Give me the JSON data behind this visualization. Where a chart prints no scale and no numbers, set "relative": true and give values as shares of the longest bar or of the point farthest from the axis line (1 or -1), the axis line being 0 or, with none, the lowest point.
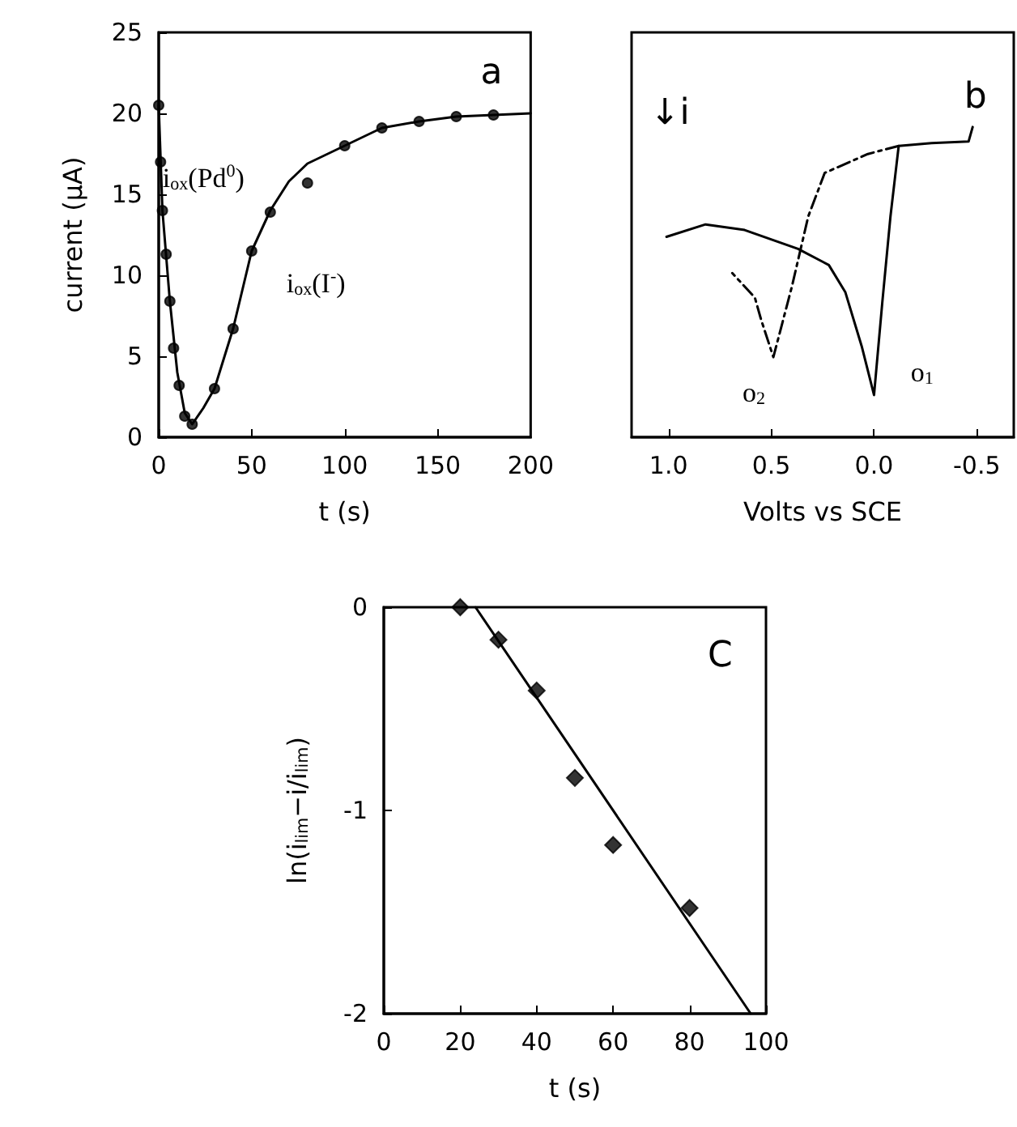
{
  "chart_data": [
    {
      "type": "scatter",
      "xlabel": "t (s)",
      "ylabel": "current (μA)",
      "xlim": [
        0,
        200
      ],
      "ylim": [
        0,
        25
      ],
      "xticks": [
        0,
        50,
        100,
        150,
        200
      ],
      "yticks": [
        0,
        5,
        10,
        15,
        20,
        25
      ],
      "grid": false,
      "annotations": [
        "a",
        "i$_{ox}$(Pd$^{0}$)",
        "i$_{ox}$(I$^{-}$)"
      ],
      "series": [
        {
          "marker": "circle",
          "color": "#000000",
          "x": [
            0,
            1,
            2,
            4,
            6,
            8,
            11,
            14,
            18,
            30,
            40,
            50,
            60,
            80,
            100,
            120,
            140,
            160,
            180
          ],
          "values": [
            20.5,
            17,
            14,
            11.3,
            8.4,
            5.5,
            3.2,
            1.3,
            0.8,
            3,
            6.7,
            11.5,
            13.9,
            15.7,
            18,
            19.1,
            19.5,
            19.8,
            19.9
          ]
        },
        {
          "type": "line",
          "marker": "none",
          "line_style": "solid",
          "color": "#000000",
          "x": [
            0,
            2,
            6,
            10,
            14,
            18,
            24,
            30,
            40,
            50,
            60,
            70,
            80,
            100,
            120,
            140,
            160,
            180,
            200
          ],
          "values": [
            20.5,
            14,
            8.4,
            4,
            1.5,
            0.8,
            1.8,
            3,
            6.7,
            11.5,
            14,
            15.8,
            16.9,
            18,
            19.1,
            19.5,
            19.8,
            19.9,
            20
          ]
        }
      ]
    },
    {
      "type": "line",
      "relative": true,
      "xlabel": "Volts vs SCE",
      "xlim": [
        1.18,
        -0.68
      ],
      "xticks": [
        {
          "value": 1,
          "label": "1.0"
        },
        0.5,
        {
          "value": 0,
          "label": "0.0"
        },
        -0.5
      ],
      "grid": false,
      "annotations": [
        "b",
        "↓i",
        "o$_{1}$",
        "o$_{2}$"
      ],
      "series": [
        {
          "line_style": "solid",
          "color": "#000000",
          "x": [
            -0.48,
            -0.46,
            -0.28,
            -0.12,
            -0.08,
            -0.04,
            0,
            0.06,
            0.14,
            0.22,
            0.37,
            0.63,
            0.82,
            1.01
          ],
          "values": [
            1,
            0.953,
            0.948,
            0.939,
            0.712,
            0.433,
            0.136,
            0.293,
            0.468,
            0.555,
            0.607,
            0.668,
            0.686,
            0.646
          ]
        },
        {
          "line_style": "dashed",
          "color": "#000000",
          "x": [
            -0.12,
            0.03,
            0.24,
            0.32,
            0.4,
            0.49,
            0.55,
            0.58,
            0.69
          ],
          "values": [
            0.939,
            0.913,
            0.852,
            0.712,
            0.485,
            0.258,
            0.38,
            0.45,
            0.529
          ]
        }
      ]
    },
    {
      "type": "scatter",
      "xlabel": "t (s)",
      "ylabel": "ln(i$_{lim}$−i/i$_{lim}$)",
      "xlim": [
        0,
        100
      ],
      "ylim": [
        -2,
        0
      ],
      "xticks": [
        0,
        20,
        40,
        60,
        80,
        100
      ],
      "yticks": [
        -2,
        -1,
        0
      ],
      "grid": false,
      "annotations": [
        "C"
      ],
      "series": [
        {
          "marker": "diamond",
          "color": "#000000",
          "x": [
            20,
            30,
            40,
            50,
            60,
            80
          ],
          "values": [
            0,
            -0.16,
            -0.41,
            -0.84,
            -1.17,
            -1.48
          ]
        },
        {
          "type": "line",
          "marker": "none",
          "line_style": "solid",
          "color": "#000000",
          "x": [
            24,
            96
          ],
          "values": [
            0,
            -2
          ]
        }
      ]
    }
  ]
}
